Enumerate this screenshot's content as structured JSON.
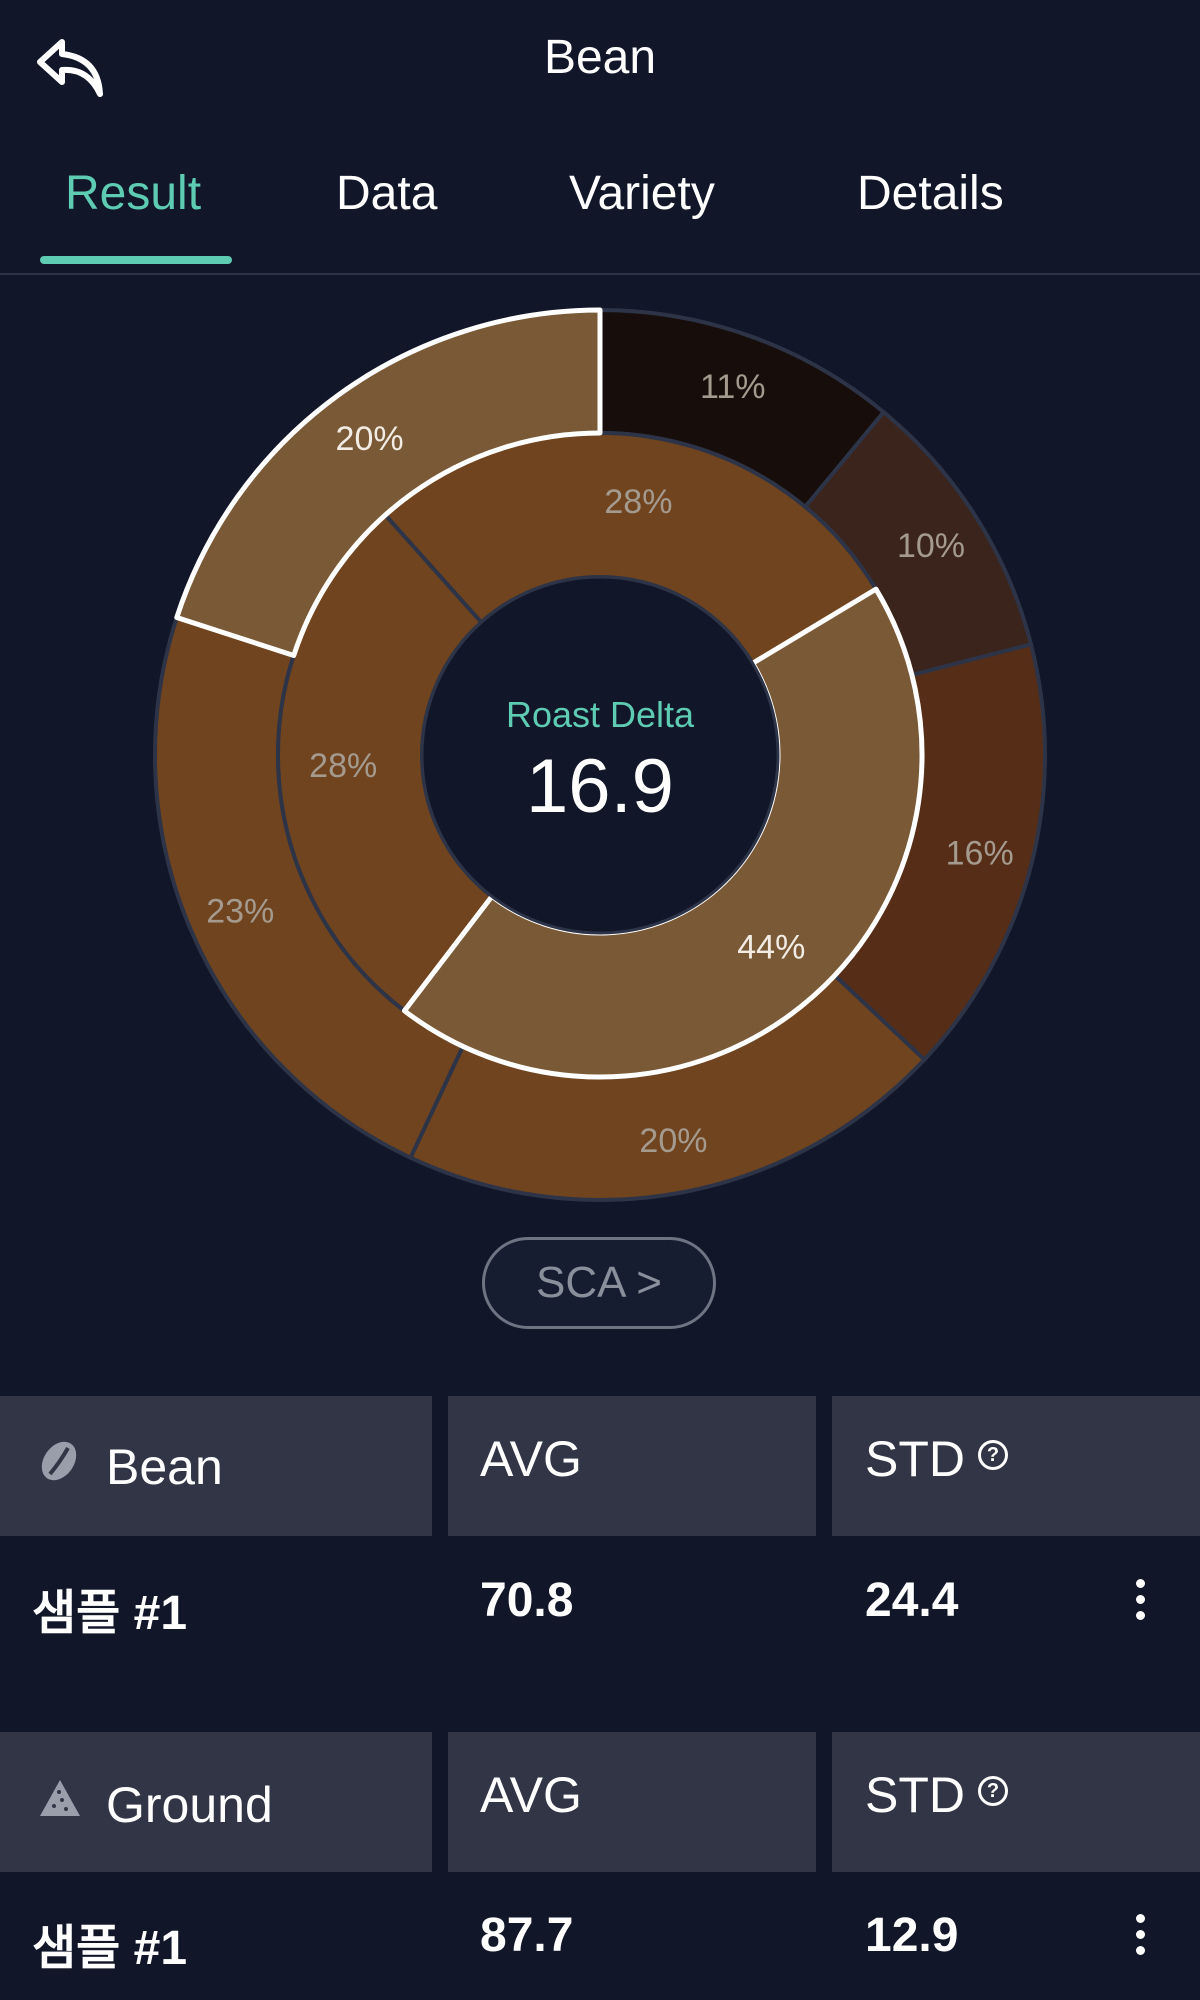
{
  "header": {
    "title": "Bean"
  },
  "tabs": [
    {
      "label": "Result"
    },
    {
      "label": "Data"
    },
    {
      "label": "Variety"
    },
    {
      "label": "Details"
    }
  ],
  "chart_data": {
    "type": "donut",
    "center_label": "Roast Delta",
    "center_value": "16.9",
    "inner_ring": [
      {
        "label": "44%",
        "value": 44,
        "color": "#7a5936",
        "highlighted": true
      },
      {
        "label": "28%",
        "value": 28,
        "color": "#6f441f"
      },
      {
        "label": "28%",
        "value": 28,
        "color": "#6f441f"
      }
    ],
    "outer_ring": [
      {
        "label": "11%",
        "value": 11,
        "color": "#170e0c"
      },
      {
        "label": "10%",
        "value": 10,
        "color": "#3a241b"
      },
      {
        "label": "16%",
        "value": 16,
        "color": "#562e18"
      },
      {
        "label": "20%",
        "value": 20,
        "color": "#6f441f"
      },
      {
        "label": "23%",
        "value": 23,
        "color": "#6f441f"
      },
      {
        "label": "20%",
        "value": 20,
        "color": "#7a5936",
        "highlighted": true
      }
    ]
  },
  "sca_button": {
    "label": "SCA >"
  },
  "tables": [
    {
      "title": "Bean",
      "icon": "coffee-bean-icon",
      "avg_header": "AVG",
      "std_header": "STD",
      "row": {
        "name": "샘플 #1",
        "avg": "70.8",
        "std": "24.4"
      }
    },
    {
      "title": "Ground",
      "icon": "ground-coffee-icon",
      "avg_header": "AVG",
      "std_header": "STD",
      "row": {
        "name": "샘플 #1",
        "avg": "87.7",
        "std": "12.9"
      }
    }
  ],
  "colors": {
    "background": "#111629",
    "accent": "#5ecbb3",
    "header_cell": "#313546"
  }
}
